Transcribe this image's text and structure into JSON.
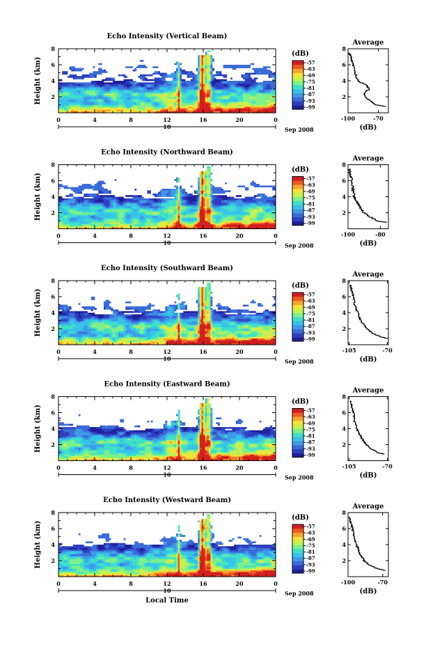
{
  "figure": {
    "xlabel": "Local Time",
    "ylabel": "Height (km)",
    "date_label": "Sep 2008",
    "day_label": "10",
    "avg_title": "Average",
    "avg_xlabel": "(dB)",
    "colorbar_unit": "(dB)"
  },
  "colorbar": {
    "ticks": [
      "-57",
      "-63",
      "-69",
      "-75",
      "-81",
      "-87",
      "-93",
      "-99"
    ],
    "colors": [
      "#1f1f9a",
      "#2c3fc0",
      "#3a6bd8",
      "#3f9ae6",
      "#36c3ea",
      "#3fe0c8",
      "#7cf08a",
      "#c6f050",
      "#f6e23a",
      "#f6a52c",
      "#ee5a22",
      "#d21f1f"
    ]
  },
  "chart_data": [
    {
      "type": "heatmap",
      "title": "Echo Intensity (Vertical Beam)",
      "x_ticks": [
        "0",
        "4",
        "8",
        "12",
        "16",
        "20",
        "0"
      ],
      "xlim": [
        0,
        24
      ],
      "ylim": [
        0,
        8
      ],
      "y_ticks": [
        "2",
        "4",
        "6",
        "8"
      ],
      "value_range_db": [
        -99,
        -57
      ],
      "average_profile": {
        "x_ticks": [
          "-100",
          "-70"
        ],
        "xlim": [
          -100,
          -60
        ],
        "height_km": [
          0.8,
          1.0,
          1.5,
          2.0,
          2.5,
          3.0,
          3.5,
          4.0,
          5.0,
          6.0,
          6.5,
          7.0,
          7.5
        ],
        "db": [
          -62,
          -72,
          -78,
          -83,
          -84,
          -79,
          -82,
          -90,
          -93,
          -95,
          -96,
          -97,
          -99
        ]
      }
    },
    {
      "type": "heatmap",
      "title": "Echo Intensity (Northward Beam)",
      "x_ticks": [
        "0",
        "4",
        "8",
        "12",
        "16",
        "20",
        "0"
      ],
      "xlim": [
        0,
        24
      ],
      "ylim": [
        0,
        8
      ],
      "y_ticks": [
        "2",
        "4",
        "6",
        "8"
      ],
      "value_range_db": [
        -99,
        -57
      ],
      "average_profile": {
        "x_ticks": [
          "-100",
          "-80"
        ],
        "xlim": [
          -100,
          -75
        ],
        "height_km": [
          0.8,
          1.0,
          1.5,
          2.0,
          2.5,
          3.0,
          3.5,
          4.0,
          5.0,
          6.0,
          6.5,
          7.0,
          7.5
        ],
        "db": [
          -76,
          -82,
          -86,
          -90,
          -92,
          -93,
          -95,
          -96,
          -97,
          -98,
          -98,
          -99,
          -99
        ]
      }
    },
    {
      "type": "heatmap",
      "title": "Echo Intensity (Southward Beam)",
      "x_ticks": [
        "0",
        "4",
        "8",
        "12",
        "16",
        "20",
        "0"
      ],
      "xlim": [
        0,
        24
      ],
      "ylim": [
        0,
        8
      ],
      "y_ticks": [
        "2",
        "4",
        "6",
        "8"
      ],
      "value_range_db": [
        -99,
        -57
      ],
      "average_profile": {
        "x_ticks": [
          "-105",
          "-70"
        ],
        "xlim": [
          -106,
          -69
        ],
        "height_km": [
          0.8,
          1.0,
          1.5,
          2.0,
          2.5,
          3.0,
          3.5,
          4.0,
          5.0,
          6.0,
          6.5,
          7.0,
          7.5
        ],
        "db": [
          -70,
          -76,
          -84,
          -88,
          -91,
          -94,
          -96,
          -97,
          -100,
          -101,
          -102,
          -103,
          -104
        ]
      }
    },
    {
      "type": "heatmap",
      "title": "Echo Intensity (Eastward Beam)",
      "x_ticks": [
        "0",
        "4",
        "8",
        "12",
        "16",
        "20",
        "0"
      ],
      "xlim": [
        0,
        24
      ],
      "ylim": [
        0,
        8
      ],
      "y_ticks": [
        "2",
        "4",
        "6",
        "8"
      ],
      "value_range_db": [
        -99,
        -57
      ],
      "average_profile": {
        "x_ticks": [
          "-105",
          "-70"
        ],
        "xlim": [
          -106,
          -69
        ],
        "height_km": [
          0.8,
          1.0,
          1.5,
          2.0,
          2.5,
          3.0,
          3.5,
          4.0,
          5.0,
          6.0,
          6.5,
          7.0,
          7.5
        ],
        "db": [
          -72,
          -78,
          -85,
          -89,
          -92,
          -94,
          -96,
          -98,
          -100,
          -101,
          -102,
          -103,
          -104
        ]
      }
    },
    {
      "type": "heatmap",
      "title": "Echo Intensity (Westward Beam)",
      "x_ticks": [
        "0",
        "4",
        "8",
        "12",
        "16",
        "20",
        "0"
      ],
      "xlim": [
        0,
        24
      ],
      "ylim": [
        0,
        8
      ],
      "y_ticks": [
        "2",
        "4",
        "6",
        "8"
      ],
      "value_range_db": [
        -99,
        -57
      ],
      "average_profile": {
        "x_ticks": [
          "-100",
          "-70"
        ],
        "xlim": [
          -100,
          -65
        ],
        "height_km": [
          0.8,
          1.0,
          1.5,
          2.0,
          2.5,
          3.0,
          3.5,
          4.0,
          5.0,
          6.0,
          6.5,
          7.0,
          7.5
        ],
        "db": [
          -68,
          -74,
          -82,
          -86,
          -88,
          -90,
          -91,
          -93,
          -95,
          -96,
          -97,
          -98,
          -99
        ]
      }
    }
  ]
}
